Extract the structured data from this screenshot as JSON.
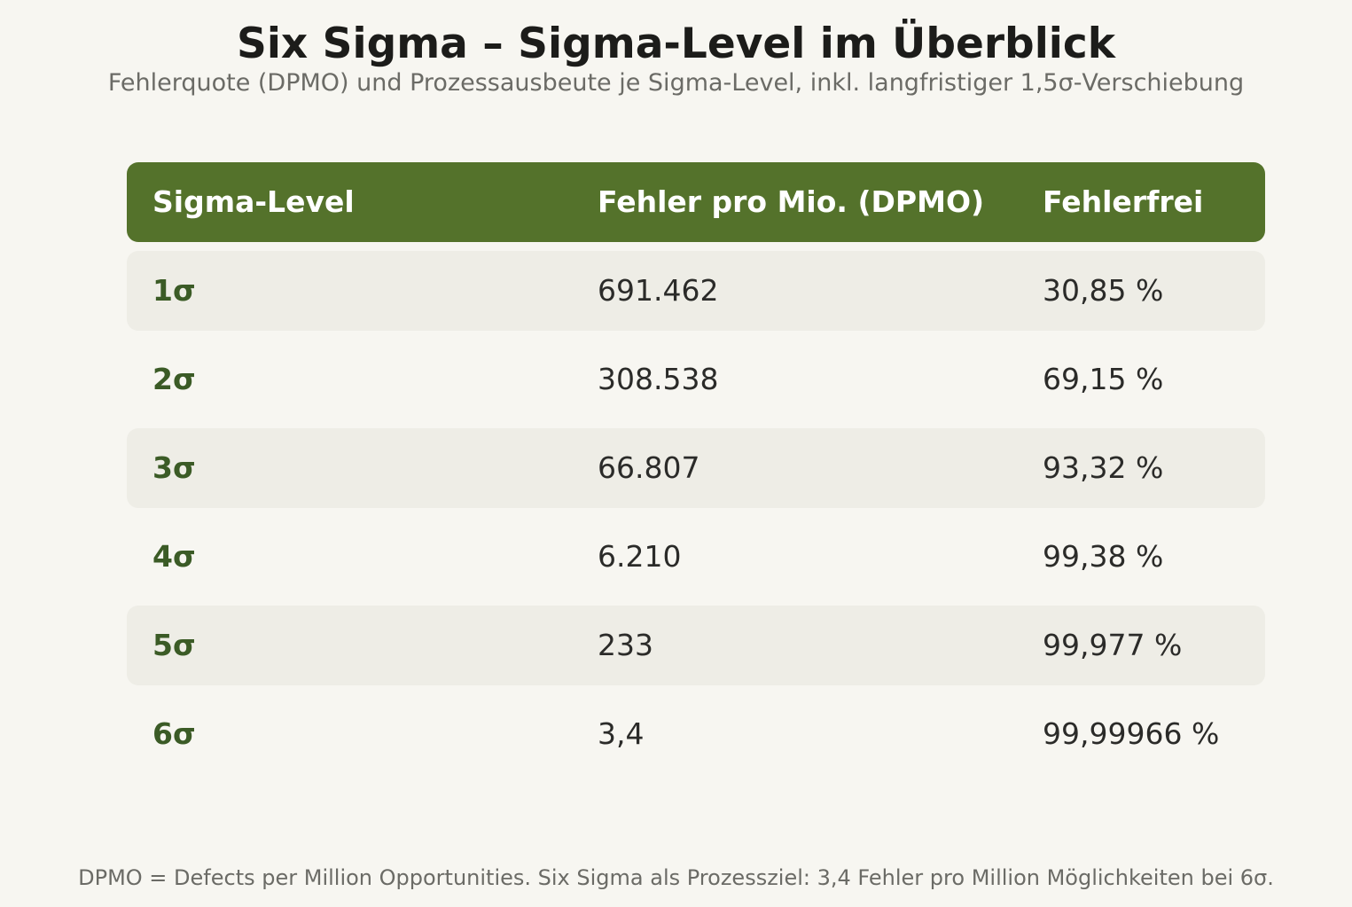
{
  "title": "Six Sigma – Sigma-Level im Überblick",
  "subtitle": "Fehlerquote (DPMO) und Prozessausbeute je Sigma-Level, inkl. langfristiger 1,5σ-Verschiebung",
  "footnote": "DPMO = Defects per Million Opportunities. Six Sigma als Prozessziel: 3,4 Fehler pro Million Möglichkeiten bei 6σ.",
  "colors": {
    "header_bg": "#54722b",
    "header_text": "#ffffff",
    "level_text": "#3b5b26",
    "stripe_bg": "#eeede6",
    "page_bg": "#f7f6f1"
  },
  "chart_data": {
    "type": "table",
    "columns": [
      "Sigma-Level",
      "Fehler pro Mio. (DPMO)",
      "Fehlerfrei"
    ],
    "rows": [
      [
        "1σ",
        "691.462",
        "30,85 %"
      ],
      [
        "2σ",
        "308.538",
        "69,15 %"
      ],
      [
        "3σ",
        "66.807",
        "93,32 %"
      ],
      [
        "4σ",
        "6.210",
        "99,38 %"
      ],
      [
        "5σ",
        "233",
        "99,977 %"
      ],
      [
        "6σ",
        "3,4",
        "99,99966 %"
      ]
    ]
  }
}
